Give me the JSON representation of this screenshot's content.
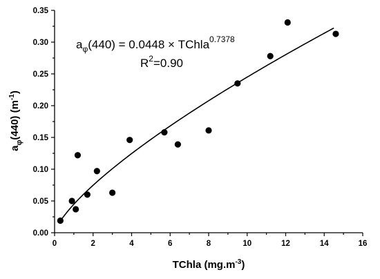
{
  "chart_data": {
    "type": "scatter",
    "xlabel": "TChla (mg.m",
    "xlabel_sup": "-3",
    "xlabel_end": ")",
    "ylabel_main": "a",
    "ylabel_sub": "φ",
    "ylabel_rest": "(440) (m",
    "ylabel_sup": "-1",
    "ylabel_end": ")",
    "xlim": [
      0,
      16
    ],
    "ylim": [
      0,
      0.35
    ],
    "x_ticks": [
      "0",
      "2",
      "4",
      "6",
      "8",
      "10",
      "12",
      "14",
      "16"
    ],
    "y_ticks": [
      "0.00",
      "0.05",
      "0.10",
      "0.15",
      "0.20",
      "0.25",
      "0.30",
      "0.35"
    ],
    "points": [
      {
        "x": 0.3,
        "y": 0.019
      },
      {
        "x": 0.9,
        "y": 0.05
      },
      {
        "x": 1.1,
        "y": 0.037
      },
      {
        "x": 1.2,
        "y": 0.122
      },
      {
        "x": 1.7,
        "y": 0.06
      },
      {
        "x": 2.2,
        "y": 0.097
      },
      {
        "x": 3.0,
        "y": 0.063
      },
      {
        "x": 3.9,
        "y": 0.146
      },
      {
        "x": 5.7,
        "y": 0.158
      },
      {
        "x": 6.4,
        "y": 0.139
      },
      {
        "x": 8.0,
        "y": 0.161
      },
      {
        "x": 9.5,
        "y": 0.235
      },
      {
        "x": 11.2,
        "y": 0.278
      },
      {
        "x": 12.1,
        "y": 0.331
      },
      {
        "x": 14.6,
        "y": 0.313
      }
    ],
    "fit": {
      "a": 0.0448,
      "b": 0.7378,
      "x_start": 0.3,
      "x_end": 14.5
    },
    "equation": {
      "lhs_main": "a",
      "lhs_sub": "φ",
      "lhs_rest": "(440) = 0.0448 × TChla",
      "exponent": "0.7378"
    },
    "r2": {
      "main": "R",
      "sup": "2",
      "rest": "=0.90"
    }
  }
}
